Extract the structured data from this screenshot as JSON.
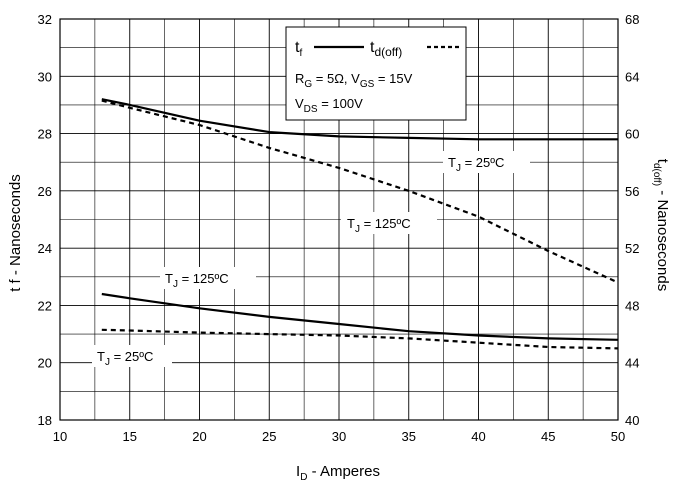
{
  "chart_data": {
    "type": "line",
    "xlabel": {
      "main": "I",
      "sub": "D",
      "rest": " - Amperes"
    },
    "ylabel_left": {
      "main": "t f - Nanoseconds"
    },
    "ylabel_right": {
      "main": "t",
      "sub": "d(off)",
      "rest": " - Nanoseconds"
    },
    "xlim": [
      10,
      50
    ],
    "ylim_left": [
      18,
      32
    ],
    "ylim_right": [
      40,
      68
    ],
    "x_ticks": [
      "10",
      "15",
      "20",
      "25",
      "30",
      "35",
      "40",
      "45",
      "50"
    ],
    "y_left_ticks": [
      "18",
      "20",
      "22",
      "24",
      "26",
      "28",
      "30",
      "32"
    ],
    "y_right_ticks": [
      "40",
      "44",
      "48",
      "52",
      "56",
      "60",
      "64",
      "68"
    ],
    "grid": true,
    "legend": {
      "tf": {
        "main": "t",
        "sub": "f"
      },
      "td": {
        "main": "t",
        "sub": "d(off)"
      },
      "cond1": {
        "a": "R",
        "a_sub": "G",
        "b": " = 5Ω,  V",
        "b_sub": "GS",
        "c": " = 15V"
      },
      "cond2": {
        "a": "V",
        "a_sub": "DS",
        "b": " = 100V"
      }
    },
    "annotations": {
      "tj25_top": {
        "main": "T",
        "sub": "J",
        "rest": " = 25ºC"
      },
      "tj125_mid": {
        "main": "T",
        "sub": "J",
        "rest": " = 125ºC"
      },
      "tj125_low": {
        "main": "T",
        "sub": "J",
        "rest": " = 125ºC"
      },
      "tj25_low": {
        "main": "T",
        "sub": "J",
        "rest": " = 25ºC"
      }
    },
    "series": [
      {
        "name": "tf",
        "axis": "left",
        "condition": "TJ = 125ºC",
        "style": "solid",
        "x": [
          13,
          15,
          20,
          25,
          30,
          35,
          40,
          45,
          50
        ],
        "y": [
          29.2,
          29.0,
          28.45,
          28.05,
          27.9,
          27.85,
          27.8,
          27.8,
          27.8
        ]
      },
      {
        "name": "td(off)",
        "axis": "right",
        "condition": "TJ = 125ºC",
        "style": "dashed",
        "x": [
          13,
          15,
          20,
          25,
          30,
          35,
          40,
          45,
          50
        ],
        "y": [
          62.3,
          61.8,
          60.6,
          59.0,
          57.6,
          56.0,
          54.2,
          51.8,
          49.6
        ]
      },
      {
        "name": "tf",
        "axis": "left",
        "condition": "TJ = 25ºC",
        "style": "solid",
        "x": [
          13,
          15,
          20,
          25,
          30,
          35,
          40,
          45,
          50
        ],
        "y": [
          22.4,
          22.25,
          21.9,
          21.6,
          21.35,
          21.1,
          20.95,
          20.85,
          20.8
        ]
      },
      {
        "name": "td(off)",
        "axis": "right",
        "condition": "TJ = 25ºC",
        "style": "dashed",
        "x": [
          13,
          15,
          20,
          25,
          30,
          35,
          40,
          45,
          50
        ],
        "y": [
          46.3,
          46.25,
          46.1,
          46.0,
          45.9,
          45.7,
          45.4,
          45.1,
          45.0
        ]
      }
    ]
  }
}
